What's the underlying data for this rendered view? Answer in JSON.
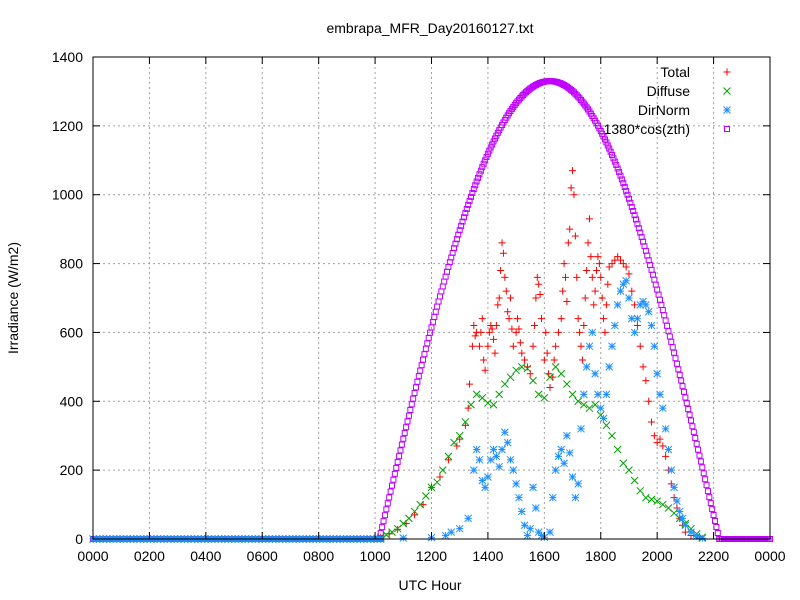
{
  "chart_data": {
    "type": "scatter",
    "title": "embrapa_MFR_Day20160127.txt",
    "xlabel": "UTC Hour",
    "ylabel": "Irradiance (W/m2)",
    "xlim": [
      0,
      24
    ],
    "ylim": [
      0,
      1400
    ],
    "x_ticks": [
      {
        "v": 0,
        "label": "0000"
      },
      {
        "v": 2,
        "label": "0200"
      },
      {
        "v": 4,
        "label": "0400"
      },
      {
        "v": 6,
        "label": "0600"
      },
      {
        "v": 8,
        "label": "0800"
      },
      {
        "v": 10,
        "label": "1000"
      },
      {
        "v": 12,
        "label": "1200"
      },
      {
        "v": 14,
        "label": "1400"
      },
      {
        "v": 16,
        "label": "1600"
      },
      {
        "v": 18,
        "label": "1800"
      },
      {
        "v": 20,
        "label": "2000"
      },
      {
        "v": 22,
        "label": "2200"
      },
      {
        "v": 24,
        "label": "0000"
      }
    ],
    "y_ticks": [
      0,
      200,
      400,
      600,
      800,
      1000,
      1200,
      1400
    ],
    "grid": true,
    "legend_position": "top-right",
    "series": [
      {
        "name": "Total",
        "marker": "plus",
        "color": "#ff0000",
        "points": [
          [
            10.2,
            5
          ],
          [
            10.5,
            15
          ],
          [
            10.8,
            28
          ],
          [
            11.1,
            45
          ],
          [
            11.4,
            70
          ],
          [
            11.7,
            100
          ],
          [
            12.0,
            150
          ],
          [
            12.3,
            180
          ],
          [
            12.6,
            230
          ],
          [
            12.9,
            270
          ],
          [
            13.0,
            290
          ],
          [
            13.2,
            330
          ],
          [
            13.3,
            380
          ],
          [
            13.35,
            450
          ],
          [
            13.45,
            560
          ],
          [
            13.5,
            620
          ],
          [
            13.55,
            590
          ],
          [
            13.6,
            600
          ],
          [
            13.7,
            560
          ],
          [
            13.75,
            600
          ],
          [
            13.8,
            640
          ],
          [
            13.85,
            520
          ],
          [
            13.9,
            490
          ],
          [
            14.0,
            560
          ],
          [
            14.05,
            600
          ],
          [
            14.1,
            620
          ],
          [
            14.15,
            610
          ],
          [
            14.2,
            580
          ],
          [
            14.25,
            540
          ],
          [
            14.3,
            620
          ],
          [
            14.35,
            680
          ],
          [
            14.4,
            700
          ],
          [
            14.45,
            780
          ],
          [
            14.5,
            860
          ],
          [
            14.55,
            830
          ],
          [
            14.6,
            760
          ],
          [
            14.65,
            720
          ],
          [
            14.7,
            660
          ],
          [
            14.75,
            640
          ],
          [
            14.8,
            700
          ],
          [
            14.85,
            610
          ],
          [
            14.9,
            560
          ],
          [
            15.0,
            600
          ],
          [
            15.05,
            640
          ],
          [
            15.1,
            610
          ],
          [
            15.15,
            570
          ],
          [
            15.2,
            540
          ],
          [
            15.3,
            520
          ],
          [
            15.4,
            500
          ],
          [
            15.5,
            480
          ],
          [
            15.6,
            560
          ],
          [
            15.65,
            620
          ],
          [
            15.7,
            700
          ],
          [
            15.75,
            760
          ],
          [
            15.8,
            740
          ],
          [
            15.85,
            710
          ],
          [
            15.9,
            640
          ],
          [
            16.0,
            520
          ],
          [
            16.05,
            600
          ],
          [
            16.1,
            540
          ],
          [
            16.15,
            480
          ],
          [
            16.2,
            440
          ],
          [
            16.3,
            470
          ],
          [
            16.35,
            520
          ],
          [
            16.4,
            560
          ],
          [
            16.5,
            600
          ],
          [
            16.6,
            640
          ],
          [
            16.65,
            720
          ],
          [
            16.7,
            800
          ],
          [
            16.75,
            760
          ],
          [
            16.8,
            690
          ],
          [
            16.85,
            860
          ],
          [
            16.9,
            900
          ],
          [
            16.95,
            1020
          ],
          [
            17.0,
            1070
          ],
          [
            17.05,
            1000
          ],
          [
            17.1,
            880
          ],
          [
            17.15,
            760
          ],
          [
            17.2,
            640
          ],
          [
            17.25,
            600
          ],
          [
            17.3,
            560
          ],
          [
            17.35,
            520
          ],
          [
            17.4,
            620
          ],
          [
            17.45,
            700
          ],
          [
            17.5,
            780
          ],
          [
            17.55,
            860
          ],
          [
            17.6,
            930
          ],
          [
            17.65,
            820
          ],
          [
            17.7,
            760
          ],
          [
            17.75,
            680
          ],
          [
            17.8,
            720
          ],
          [
            17.85,
            780
          ],
          [
            17.9,
            820
          ],
          [
            17.95,
            800
          ],
          [
            18.0,
            760
          ],
          [
            18.05,
            700
          ],
          [
            18.1,
            640
          ],
          [
            18.15,
            600
          ],
          [
            18.2,
            680
          ],
          [
            18.25,
            740
          ],
          [
            18.3,
            790
          ],
          [
            18.4,
            800
          ],
          [
            18.5,
            810
          ],
          [
            18.6,
            820
          ],
          [
            18.7,
            810
          ],
          [
            18.8,
            800
          ],
          [
            18.9,
            790
          ],
          [
            19.0,
            770
          ],
          [
            19.1,
            720
          ],
          [
            19.2,
            680
          ],
          [
            19.3,
            620
          ],
          [
            19.4,
            560
          ],
          [
            19.5,
            500
          ],
          [
            19.6,
            460
          ],
          [
            19.7,
            400
          ],
          [
            19.8,
            340
          ],
          [
            19.9,
            300
          ],
          [
            20.0,
            280
          ],
          [
            20.1,
            290
          ],
          [
            20.2,
            270
          ],
          [
            20.3,
            240
          ],
          [
            20.4,
            200
          ],
          [
            20.5,
            160
          ],
          [
            20.6,
            120
          ],
          [
            20.7,
            90
          ],
          [
            20.8,
            60
          ],
          [
            20.9,
            40
          ],
          [
            21.0,
            20
          ],
          [
            21.2,
            10
          ],
          [
            21.5,
            3
          ]
        ]
      },
      {
        "name": "Diffuse",
        "marker": "cross",
        "color": "#00a000",
        "points": [
          [
            10.2,
            5
          ],
          [
            10.4,
            12
          ],
          [
            10.6,
            20
          ],
          [
            10.8,
            30
          ],
          [
            11.0,
            45
          ],
          [
            11.2,
            60
          ],
          [
            11.4,
            80
          ],
          [
            11.6,
            100
          ],
          [
            11.8,
            125
          ],
          [
            12.0,
            150
          ],
          [
            12.2,
            165
          ],
          [
            12.4,
            200
          ],
          [
            12.6,
            240
          ],
          [
            12.8,
            280
          ],
          [
            13.0,
            300
          ],
          [
            13.2,
            340
          ],
          [
            13.4,
            390
          ],
          [
            13.6,
            420
          ],
          [
            13.8,
            410
          ],
          [
            14.0,
            395
          ],
          [
            14.2,
            390
          ],
          [
            14.4,
            420
          ],
          [
            14.6,
            450
          ],
          [
            14.8,
            470
          ],
          [
            15.0,
            490
          ],
          [
            15.2,
            500
          ],
          [
            15.4,
            495
          ],
          [
            15.6,
            460
          ],
          [
            15.8,
            420
          ],
          [
            16.0,
            410
          ],
          [
            16.2,
            470
          ],
          [
            16.4,
            500
          ],
          [
            16.6,
            480
          ],
          [
            16.8,
            450
          ],
          [
            17.0,
            420
          ],
          [
            17.2,
            400
          ],
          [
            17.4,
            390
          ],
          [
            17.6,
            380
          ],
          [
            17.8,
            390
          ],
          [
            18.0,
            360
          ],
          [
            18.2,
            330
          ],
          [
            18.4,
            300
          ],
          [
            18.6,
            260
          ],
          [
            18.8,
            220
          ],
          [
            19.0,
            200
          ],
          [
            19.2,
            170
          ],
          [
            19.4,
            140
          ],
          [
            19.6,
            120
          ],
          [
            19.8,
            115
          ],
          [
            20.0,
            110
          ],
          [
            20.2,
            100
          ],
          [
            20.4,
            90
          ],
          [
            20.6,
            75
          ],
          [
            20.8,
            60
          ],
          [
            21.0,
            45
          ],
          [
            21.2,
            30
          ],
          [
            21.4,
            15
          ],
          [
            21.6,
            5
          ]
        ]
      },
      {
        "name": "DirNorm",
        "marker": "star",
        "color": "#1e90ff",
        "points": [
          [
            10.2,
            2
          ],
          [
            11.0,
            3
          ],
          [
            12.0,
            4
          ],
          [
            12.5,
            10
          ],
          [
            12.7,
            20
          ],
          [
            13.0,
            30
          ],
          [
            13.3,
            60
          ],
          [
            13.5,
            200
          ],
          [
            13.6,
            260
          ],
          [
            13.7,
            230
          ],
          [
            13.8,
            170
          ],
          [
            13.9,
            150
          ],
          [
            14.0,
            180
          ],
          [
            14.1,
            230
          ],
          [
            14.2,
            260
          ],
          [
            14.3,
            240
          ],
          [
            14.4,
            210
          ],
          [
            14.5,
            260
          ],
          [
            14.6,
            310
          ],
          [
            14.7,
            280
          ],
          [
            14.8,
            230
          ],
          [
            14.9,
            200
          ],
          [
            15.0,
            160
          ],
          [
            15.1,
            120
          ],
          [
            15.2,
            80
          ],
          [
            15.3,
            40
          ],
          [
            15.4,
            10
          ],
          [
            15.5,
            30
          ],
          [
            15.6,
            150
          ],
          [
            15.7,
            90
          ],
          [
            15.8,
            20
          ],
          [
            15.9,
            10
          ],
          [
            16.0,
            5
          ],
          [
            16.2,
            20
          ],
          [
            16.3,
            120
          ],
          [
            16.4,
            200
          ],
          [
            16.5,
            240
          ],
          [
            16.6,
            260
          ],
          [
            16.7,
            220
          ],
          [
            16.8,
            300
          ],
          [
            16.9,
            250
          ],
          [
            17.0,
            180
          ],
          [
            17.1,
            120
          ],
          [
            17.2,
            160
          ],
          [
            17.3,
            320
          ],
          [
            17.4,
            420
          ],
          [
            17.5,
            500
          ],
          [
            17.6,
            560
          ],
          [
            17.7,
            600
          ],
          [
            17.8,
            480
          ],
          [
            17.9,
            420
          ],
          [
            18.0,
            380
          ],
          [
            18.1,
            350
          ],
          [
            18.2,
            420
          ],
          [
            18.3,
            500
          ],
          [
            18.4,
            560
          ],
          [
            18.5,
            620
          ],
          [
            18.6,
            680
          ],
          [
            18.7,
            720
          ],
          [
            18.8,
            740
          ],
          [
            18.9,
            750
          ],
          [
            19.0,
            700
          ],
          [
            19.1,
            640
          ],
          [
            19.2,
            600
          ],
          [
            19.3,
            640
          ],
          [
            19.4,
            680
          ],
          [
            19.5,
            690
          ],
          [
            19.6,
            680
          ],
          [
            19.7,
            660
          ],
          [
            19.8,
            620
          ],
          [
            19.9,
            560
          ],
          [
            20.0,
            480
          ],
          [
            20.1,
            420
          ],
          [
            20.2,
            380
          ],
          [
            20.3,
            320
          ],
          [
            20.4,
            260
          ],
          [
            20.5,
            200
          ],
          [
            20.6,
            150
          ],
          [
            20.7,
            110
          ],
          [
            20.8,
            80
          ],
          [
            20.9,
            60
          ],
          [
            21.0,
            40
          ],
          [
            21.2,
            20
          ],
          [
            21.4,
            8
          ],
          [
            21.6,
            2
          ]
        ]
      },
      {
        "name": "1380*cos(zth)",
        "marker": "square",
        "color": "#c000ff",
        "curve": {
          "start": 10.15,
          "end": 22.2,
          "peak": 1330,
          "peak_x": 16.2
        }
      }
    ]
  }
}
